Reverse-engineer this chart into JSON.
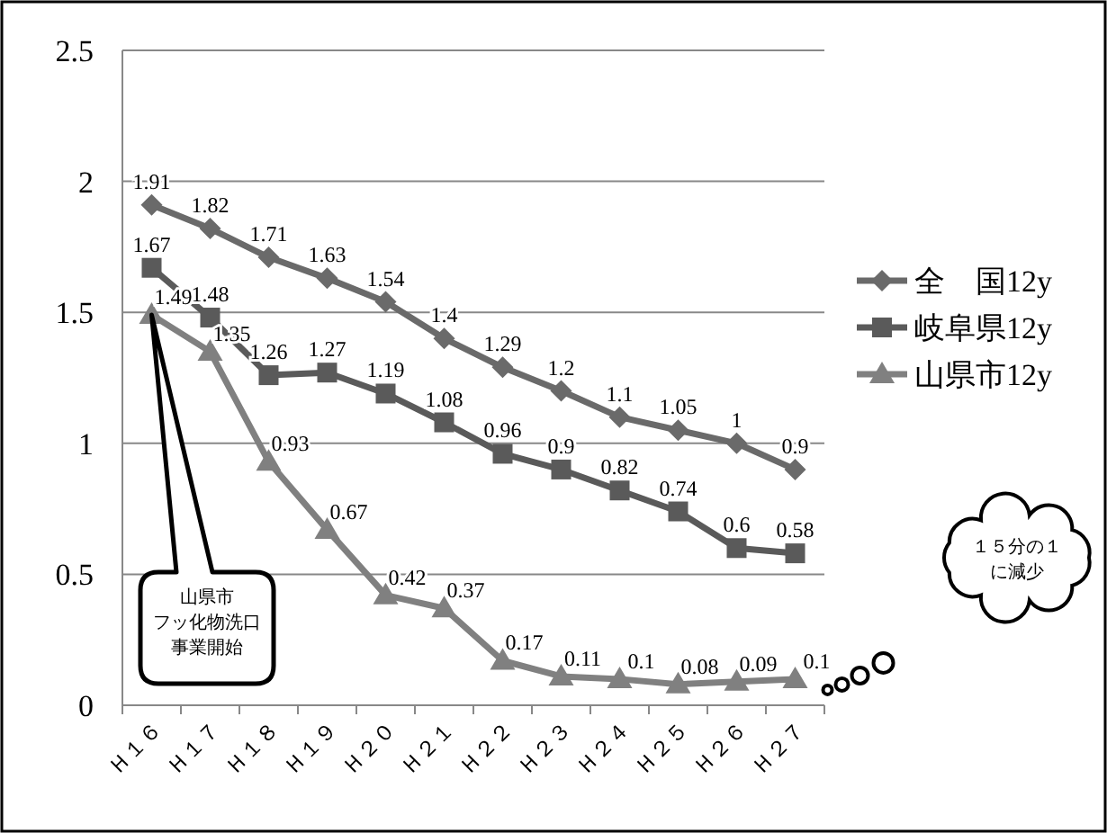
{
  "chart_data": {
    "type": "line",
    "categories": [
      "Ｈ１６",
      "Ｈ１７",
      "Ｈ１８",
      "Ｈ１９",
      "Ｈ２０",
      "Ｈ２１",
      "Ｈ２２",
      "Ｈ２３",
      "Ｈ２４",
      "Ｈ２５",
      "Ｈ２６",
      "Ｈ２７"
    ],
    "series": [
      {
        "name": "全　国12y",
        "color": "#6a6a6a",
        "marker": "diamond",
        "values": [
          1.91,
          1.82,
          1.71,
          1.63,
          1.54,
          1.4,
          1.29,
          1.2,
          1.1,
          1.05,
          1,
          0.9
        ]
      },
      {
        "name": "岐阜県12y",
        "color": "#5a5a5a",
        "marker": "square",
        "values": [
          1.67,
          1.48,
          1.26,
          1.27,
          1.19,
          1.08,
          0.96,
          0.9,
          0.82,
          0.74,
          0.6,
          0.58
        ]
      },
      {
        "name": "山県市12y",
        "color": "#808080",
        "marker": "triangle",
        "values": [
          1.49,
          1.35,
          0.93,
          0.67,
          0.42,
          0.37,
          0.17,
          0.11,
          0.1,
          0.08,
          0.09,
          0.1
        ]
      }
    ],
    "ylim": [
      0,
      2.5
    ],
    "yticks": [
      0,
      0.5,
      1,
      1.5,
      2,
      2.5
    ],
    "grid": "y",
    "legend": "right",
    "data_labels": true,
    "line_style": "solid",
    "annotations": [
      "山県市",
      "フッ化物洗口",
      "事業開始",
      "１５分の１",
      "に減少"
    ]
  }
}
